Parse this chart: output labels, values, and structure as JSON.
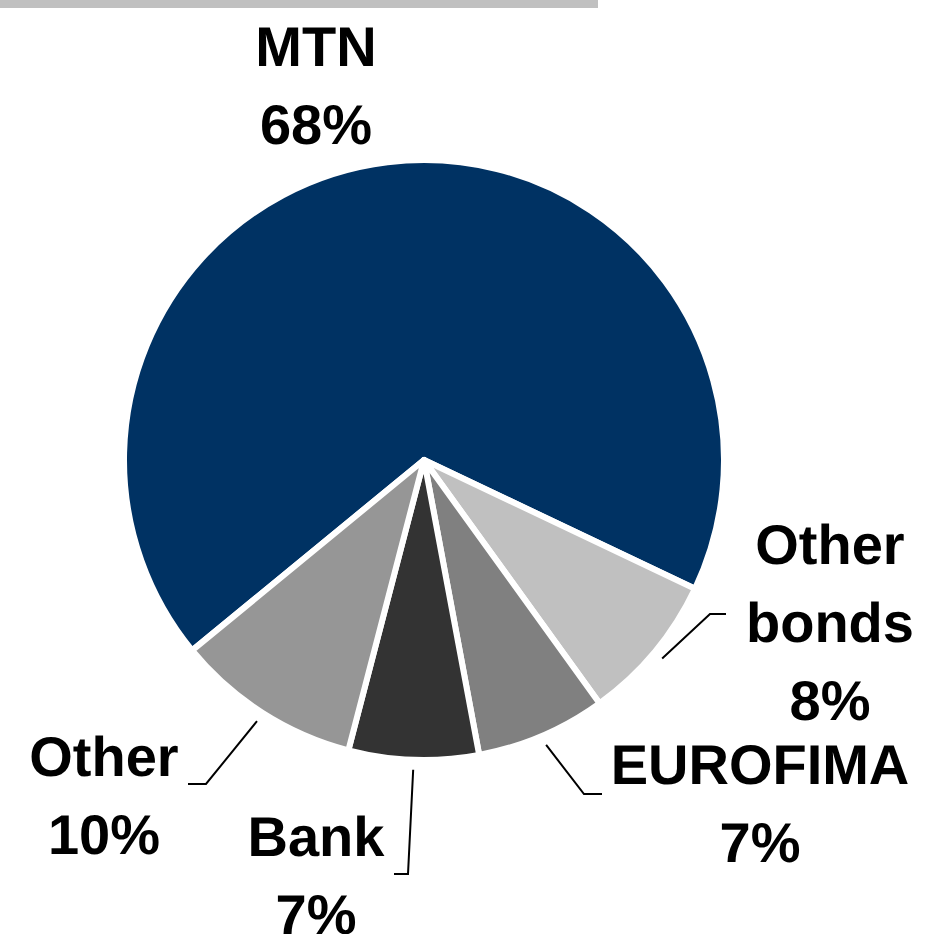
{
  "chart_data": {
    "type": "pie",
    "categories": [
      "MTN",
      "Other bonds",
      "EUROFIMA",
      "Bank",
      "Other"
    ],
    "values": [
      68,
      8,
      7,
      7,
      10
    ],
    "colors": [
      "#003263",
      "#c0c0c0",
      "#808080",
      "#333333",
      "#969696"
    ],
    "value_labels": [
      "68%",
      "8%",
      "7%",
      "7%",
      "10%"
    ]
  }
}
